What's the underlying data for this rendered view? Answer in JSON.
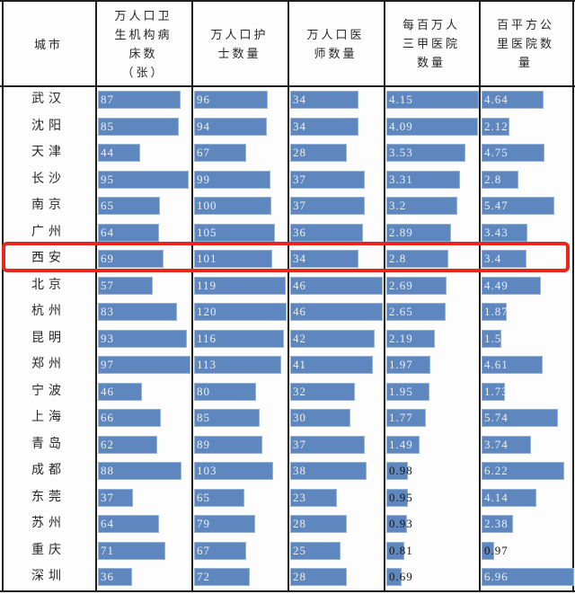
{
  "chart_data": {
    "type": "bar",
    "orientation": "horizontal",
    "category_header": "城市",
    "categories": [
      "武汉",
      "沈阳",
      "天津",
      "长沙",
      "南京",
      "广州",
      "西安",
      "北京",
      "杭州",
      "昆明",
      "郑州",
      "宁波",
      "上海",
      "青岛",
      "成都",
      "东莞",
      "苏州",
      "重庆",
      "深圳"
    ],
    "series": [
      {
        "name": "万人口卫生机构病床数（张）",
        "header_lines": [
          "万人口卫",
          "生机构病",
          "床数",
          "（张）"
        ],
        "axis_max": 97,
        "values": [
          87,
          85,
          44,
          95,
          65,
          64,
          69,
          57,
          83,
          93,
          97,
          46,
          66,
          62,
          88,
          37,
          64,
          71,
          36
        ]
      },
      {
        "name": "万人口护士数量",
        "header_lines": [
          "万人口护",
          "士数量"
        ],
        "axis_max": 120,
        "values": [
          96,
          94,
          67,
          99,
          100,
          105,
          101,
          119,
          120,
          116,
          113,
          80,
          85,
          89,
          103,
          65,
          79,
          67,
          72
        ]
      },
      {
        "name": "万人口医师数量",
        "header_lines": [
          "万人口医",
          "师数量"
        ],
        "axis_max": 46,
        "values": [
          34,
          34,
          28,
          37,
          37,
          36,
          34,
          46,
          46,
          42,
          41,
          32,
          30,
          37,
          38,
          23,
          28,
          25,
          28
        ]
      },
      {
        "name": "每百万人三甲医院数量",
        "header_lines": [
          "每百万人",
          "三甲医院",
          "数量"
        ],
        "axis_max": 4.15,
        "values": [
          4.15,
          4.09,
          3.53,
          3.31,
          3.2,
          2.89,
          2.8,
          2.69,
          2.65,
          2.19,
          1.97,
          1.95,
          1.77,
          1.49,
          0.98,
          0.95,
          0.93,
          0.81,
          0.69
        ]
      },
      {
        "name": "百平方公里医院数量",
        "header_lines": [
          "百平方公",
          "里医院数",
          "量"
        ],
        "axis_max": 6.96,
        "values": [
          4.64,
          2.12,
          4.75,
          2.8,
          5.47,
          3.43,
          3.4,
          4.49,
          1.87,
          1.5,
          4.61,
          1.73,
          5.74,
          3.74,
          6.22,
          4.14,
          2.38,
          0.97,
          6.96
        ]
      }
    ],
    "legend_position": "none",
    "grid": "column-dividers-only",
    "highlight": {
      "category": "西安",
      "row_index": 6
    }
  },
  "colors": {
    "bar": "#5d87be",
    "bar_label_light": "#f0f0f0",
    "bar_label_dark": "#141414",
    "grid_line": "#1d1d1d",
    "highlight_red": "#e8261d",
    "background": "#fdfdfd"
  }
}
